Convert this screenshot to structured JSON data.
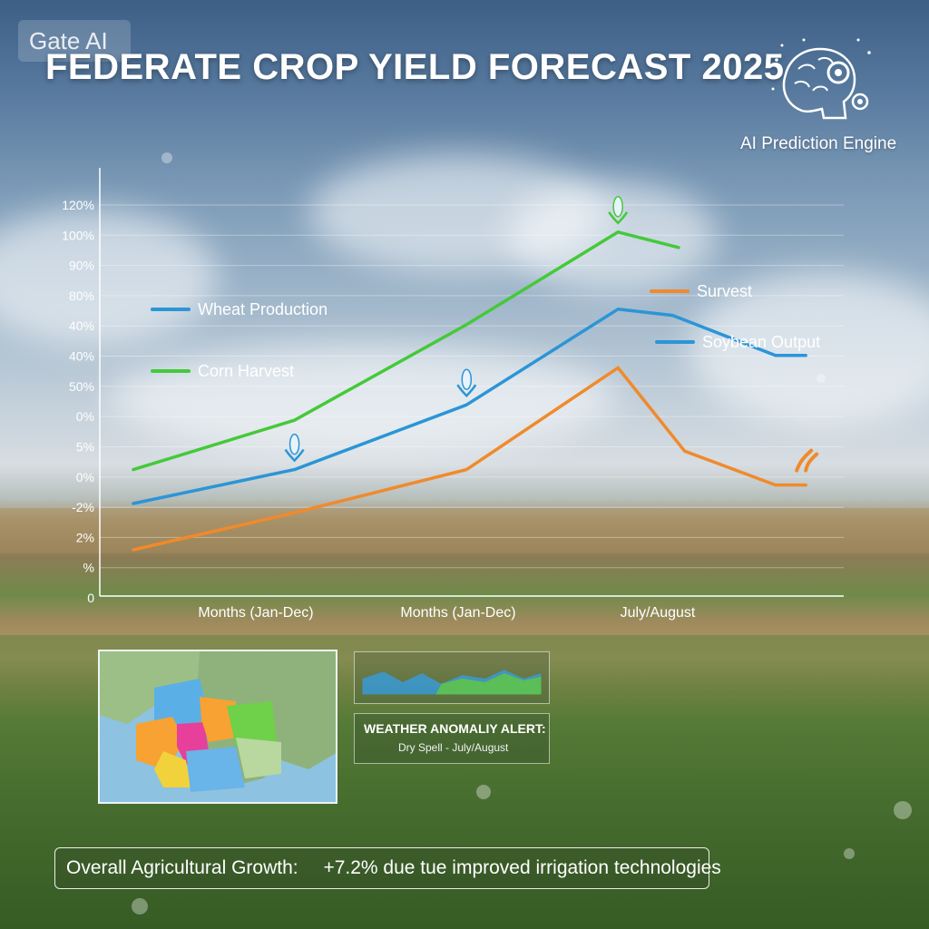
{
  "brand": {
    "text": "Gate AI"
  },
  "title": "FEDERATE CROP YIELD FORECAST 2025",
  "engine": {
    "label": "AI Prediction Engine",
    "icon": "brain-gear-icon"
  },
  "chart_data": {
    "type": "line",
    "title": "FEDERATE CROP YIELD FORECAST 2025",
    "y_tick_labels": [
      "120%",
      "100%",
      "90%",
      "80%",
      "40%",
      "40%",
      "50%",
      "0%",
      "5%",
      "0%",
      "-2%",
      "2%",
      "%",
      "0"
    ],
    "x_tick_labels": [
      "Months (Jan-Dec)",
      "Months (Jan-Dec)",
      "July/August"
    ],
    "ylim": [
      0,
      130
    ],
    "grid": true,
    "series": [
      {
        "name": "Corn Harvest",
        "color": "#45c93a",
        "points": [
          [
            0,
            41
          ],
          [
            1.33,
            57
          ],
          [
            2.75,
            88
          ],
          [
            4,
            118
          ],
          [
            4.5,
            113
          ]
        ]
      },
      {
        "name": "Wheat Production",
        "color": "#2b95d6",
        "points": [
          [
            0,
            30
          ],
          [
            1.33,
            41
          ],
          [
            2.75,
            62
          ],
          [
            4,
            93
          ],
          [
            4.45,
            91
          ],
          [
            5.3,
            78
          ],
          [
            5.55,
            78
          ]
        ]
      },
      {
        "name": "Survest",
        "color": "#f08a2c",
        "points": [
          [
            0,
            15
          ],
          [
            1.33,
            27
          ],
          [
            2.75,
            41
          ],
          [
            4,
            74
          ],
          [
            4.55,
            47
          ],
          [
            5.3,
            36
          ],
          [
            5.55,
            36
          ]
        ]
      },
      {
        "name": "Soybean Output",
        "color": "#2b95d6",
        "points": []
      }
    ],
    "legend": [
      {
        "label": "Wheat Production",
        "color": "#2b95d6",
        "position": "left"
      },
      {
        "label": "Corn Harvest",
        "color": "#45c93a",
        "position": "left"
      },
      {
        "label": "Survest",
        "color": "#f08a2c",
        "position": "right"
      },
      {
        "label": "Soybean Output",
        "color": "#2b95d6",
        "position": "right"
      }
    ],
    "markers": [
      {
        "series": "Wheat Production",
        "x": 1.33,
        "icon": "corn-icon"
      },
      {
        "series": "Wheat Production",
        "x": 2.75,
        "icon": "corn-icon"
      },
      {
        "series": "Corn Harvest",
        "x": 4,
        "icon": "corn-icon"
      },
      {
        "series": "Survest",
        "x": 5.55,
        "icon": "soybean-icon"
      }
    ]
  },
  "map": {
    "icon": "region-map"
  },
  "alert": {
    "title": "WEATHER ANOMALIY ALERT:",
    "detail": "Dry Spell - July/August"
  },
  "growth": {
    "label": "Overall Agricultural Growth:",
    "value": "+7.2% due tue improved irrigation technologies"
  }
}
